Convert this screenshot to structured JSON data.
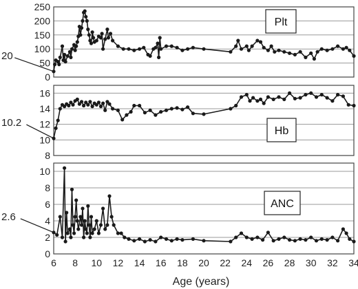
{
  "chart_data": {
    "type": "line",
    "x_axis": {
      "label": "Age (years)",
      "range": [
        6,
        34
      ],
      "ticks": [
        6,
        8,
        10,
        12,
        14,
        16,
        18,
        20,
        22,
        24,
        26,
        28,
        30,
        32,
        34
      ]
    },
    "grid": "horizontal",
    "panels": [
      {
        "id": "plt",
        "name": "Plt",
        "ylim": [
          0,
          250
        ],
        "yticks": [
          0,
          50,
          100,
          150,
          200,
          250
        ],
        "legend": "top-right",
        "annotation": {
          "label": "20",
          "x": 6,
          "y": 20
        },
        "points": [
          [
            6.0,
            20
          ],
          [
            6.1,
            45
          ],
          [
            6.2,
            60
          ],
          [
            6.4,
            55
          ],
          [
            6.5,
            45
          ],
          [
            6.6,
            70
          ],
          [
            6.8,
            110
          ],
          [
            6.9,
            60
          ],
          [
            7.0,
            80
          ],
          [
            7.1,
            55
          ],
          [
            7.3,
            75
          ],
          [
            7.5,
            90
          ],
          [
            7.6,
            70
          ],
          [
            7.7,
            100
          ],
          [
            7.9,
            115
          ],
          [
            8.0,
            95
          ],
          [
            8.1,
            110
          ],
          [
            8.2,
            125
          ],
          [
            8.3,
            145
          ],
          [
            8.4,
            180
          ],
          [
            8.5,
            150
          ],
          [
            8.6,
            175
          ],
          [
            8.7,
            200
          ],
          [
            8.8,
            230
          ],
          [
            8.9,
            235
          ],
          [
            9.0,
            215
          ],
          [
            9.1,
            200
          ],
          [
            9.2,
            170
          ],
          [
            9.3,
            150
          ],
          [
            9.4,
            130
          ],
          [
            9.5,
            120
          ],
          [
            9.6,
            160
          ],
          [
            9.7,
            140
          ],
          [
            9.8,
            125
          ],
          [
            10.0,
            130
          ],
          [
            10.2,
            145
          ],
          [
            10.4,
            140
          ],
          [
            10.5,
            155
          ],
          [
            10.6,
            100
          ],
          [
            10.8,
            135
          ],
          [
            11.0,
            170
          ],
          [
            11.1,
            140
          ],
          [
            11.3,
            155
          ],
          [
            11.5,
            130
          ],
          [
            12.0,
            110
          ],
          [
            12.5,
            100
          ],
          [
            13.0,
            100
          ],
          [
            13.5,
            95
          ],
          [
            14.0,
            100
          ],
          [
            14.4,
            105
          ],
          [
            14.8,
            80
          ],
          [
            15.0,
            75
          ],
          [
            15.3,
            100
          ],
          [
            15.5,
            105
          ],
          [
            15.7,
            120
          ],
          [
            15.8,
            70
          ],
          [
            15.9,
            140
          ],
          [
            16.0,
            100
          ],
          [
            16.5,
            110
          ],
          [
            17.0,
            110
          ],
          [
            17.5,
            105
          ],
          [
            18.0,
            95
          ],
          [
            18.5,
            100
          ],
          [
            19.0,
            105
          ],
          [
            20.0,
            100
          ],
          [
            22.5,
            90
          ],
          [
            23.0,
            110
          ],
          [
            23.2,
            130
          ],
          [
            23.5,
            100
          ],
          [
            24.0,
            110
          ],
          [
            24.2,
            95
          ],
          [
            24.5,
            110
          ],
          [
            25.0,
            130
          ],
          [
            25.3,
            125
          ],
          [
            25.6,
            105
          ],
          [
            26.0,
            95
          ],
          [
            26.3,
            110
          ],
          [
            26.6,
            90
          ],
          [
            27.0,
            95
          ],
          [
            27.5,
            90
          ],
          [
            28.0,
            85
          ],
          [
            28.5,
            80
          ],
          [
            29.0,
            90
          ],
          [
            29.5,
            70
          ],
          [
            30.0,
            85
          ],
          [
            30.3,
            65
          ],
          [
            30.6,
            90
          ],
          [
            31.0,
            100
          ],
          [
            31.5,
            95
          ],
          [
            32.0,
            100
          ],
          [
            32.5,
            110
          ],
          [
            33.0,
            100
          ],
          [
            33.3,
            105
          ],
          [
            33.6,
            95
          ],
          [
            34.0,
            75
          ]
        ]
      },
      {
        "id": "hb",
        "name": "Hb",
        "ylim": [
          8,
          17
        ],
        "yticks": [
          8,
          10,
          12,
          14,
          16
        ],
        "legend": "right",
        "annotation": {
          "label": "10.2",
          "x": 6,
          "y": 10.2
        },
        "points": [
          [
            6.0,
            10.2
          ],
          [
            6.2,
            11.5
          ],
          [
            6.4,
            12.5
          ],
          [
            6.6,
            14.0
          ],
          [
            6.8,
            14.5
          ],
          [
            7.0,
            14.3
          ],
          [
            7.2,
            14.6
          ],
          [
            7.4,
            14.4
          ],
          [
            7.6,
            14.8
          ],
          [
            7.8,
            14.5
          ],
          [
            8.0,
            15.0
          ],
          [
            8.2,
            15.2
          ],
          [
            8.4,
            14.6
          ],
          [
            8.6,
            14.9
          ],
          [
            8.8,
            14.4
          ],
          [
            9.0,
            14.8
          ],
          [
            9.2,
            14.5
          ],
          [
            9.4,
            14.9
          ],
          [
            9.6,
            14.3
          ],
          [
            9.8,
            14.7
          ],
          [
            10.0,
            14.5
          ],
          [
            10.2,
            14.8
          ],
          [
            10.4,
            14.3
          ],
          [
            10.6,
            14.7
          ],
          [
            10.8,
            13.8
          ],
          [
            11.0,
            14.9
          ],
          [
            11.2,
            14.6
          ],
          [
            11.5,
            14.0
          ],
          [
            12.0,
            13.8
          ],
          [
            12.4,
            12.6
          ],
          [
            12.8,
            13.2
          ],
          [
            13.2,
            13.6
          ],
          [
            13.5,
            14.4
          ],
          [
            14.0,
            14.4
          ],
          [
            14.5,
            13.5
          ],
          [
            15.0,
            13.8
          ],
          [
            15.5,
            13.2
          ],
          [
            16.0,
            13.6
          ],
          [
            16.5,
            13.8
          ],
          [
            17.0,
            14.0
          ],
          [
            17.5,
            14.1
          ],
          [
            18.0,
            13.9
          ],
          [
            18.5,
            14.2
          ],
          [
            19.0,
            13.4
          ],
          [
            20.0,
            13.3
          ],
          [
            22.5,
            14.0
          ],
          [
            23.0,
            14.4
          ],
          [
            23.5,
            15.5
          ],
          [
            24.0,
            15.8
          ],
          [
            24.3,
            15.0
          ],
          [
            24.6,
            15.4
          ],
          [
            25.0,
            15.0
          ],
          [
            25.3,
            15.2
          ],
          [
            25.6,
            14.7
          ],
          [
            26.0,
            15.5
          ],
          [
            26.5,
            15.2
          ],
          [
            27.0,
            15.5
          ],
          [
            27.5,
            15.2
          ],
          [
            28.0,
            16.0
          ],
          [
            28.5,
            15.3
          ],
          [
            29.0,
            15.4
          ],
          [
            29.5,
            15.8
          ],
          [
            30.0,
            16.0
          ],
          [
            30.5,
            15.5
          ],
          [
            31.0,
            15.8
          ],
          [
            31.5,
            15.4
          ],
          [
            32.0,
            15.0
          ],
          [
            32.5,
            15.8
          ],
          [
            33.0,
            15.6
          ],
          [
            33.5,
            14.5
          ],
          [
            34.0,
            14.4
          ]
        ]
      },
      {
        "id": "anc",
        "name": "ANC",
        "ylim": [
          0,
          11
        ],
        "yticks": [
          0,
          2,
          4,
          6,
          8,
          10
        ],
        "legend": "right",
        "annotation": {
          "label": "2.6",
          "x": 6,
          "y": 2.6
        },
        "points": [
          [
            6.0,
            2.6
          ],
          [
            6.3,
            2.3
          ],
          [
            6.6,
            4.5
          ],
          [
            6.8,
            2.0
          ],
          [
            7.0,
            10.4
          ],
          [
            7.1,
            1.5
          ],
          [
            7.2,
            5.0
          ],
          [
            7.3,
            2.5
          ],
          [
            7.5,
            3.0
          ],
          [
            7.6,
            2.0
          ],
          [
            7.7,
            7.8
          ],
          [
            7.8,
            3.5
          ],
          [
            7.9,
            2.5
          ],
          [
            8.0,
            4.5
          ],
          [
            8.1,
            6.5
          ],
          [
            8.2,
            4.0
          ],
          [
            8.3,
            3.0
          ],
          [
            8.5,
            4.5
          ],
          [
            8.6,
            3.5
          ],
          [
            8.7,
            5.5
          ],
          [
            8.8,
            2.0
          ],
          [
            8.9,
            4.0
          ],
          [
            9.0,
            3.0
          ],
          [
            9.1,
            2.5
          ],
          [
            9.2,
            5.8
          ],
          [
            9.3,
            3.5
          ],
          [
            9.4,
            2.0
          ],
          [
            9.5,
            4.5
          ],
          [
            9.6,
            2.5
          ],
          [
            9.8,
            3.0
          ],
          [
            10.0,
            4.0
          ],
          [
            10.2,
            2.5
          ],
          [
            10.4,
            3.5
          ],
          [
            10.6,
            5.5
          ],
          [
            10.8,
            3.0
          ],
          [
            11.0,
            3.5
          ],
          [
            11.2,
            7.0
          ],
          [
            11.4,
            4.5
          ],
          [
            11.6,
            3.5
          ],
          [
            12.0,
            2.5
          ],
          [
            12.3,
            2.5
          ],
          [
            12.6,
            2.0
          ],
          [
            13.0,
            1.8
          ],
          [
            13.5,
            1.6
          ],
          [
            14.0,
            1.8
          ],
          [
            14.5,
            1.5
          ],
          [
            15.0,
            1.7
          ],
          [
            15.5,
            1.5
          ],
          [
            16.0,
            2.0
          ],
          [
            16.5,
            1.8
          ],
          [
            17.0,
            1.6
          ],
          [
            17.5,
            1.8
          ],
          [
            18.0,
            1.7
          ],
          [
            19.0,
            1.8
          ],
          [
            20.0,
            1.6
          ],
          [
            22.5,
            1.5
          ],
          [
            23.0,
            2.0
          ],
          [
            23.5,
            2.5
          ],
          [
            24.0,
            2.0
          ],
          [
            24.5,
            1.8
          ],
          [
            25.0,
            2.0
          ],
          [
            25.5,
            1.7
          ],
          [
            26.0,
            2.6
          ],
          [
            26.5,
            1.6
          ],
          [
            27.0,
            1.8
          ],
          [
            27.5,
            2.0
          ],
          [
            28.0,
            1.7
          ],
          [
            28.5,
            1.6
          ],
          [
            29.0,
            1.8
          ],
          [
            29.5,
            1.7
          ],
          [
            30.0,
            2.0
          ],
          [
            30.5,
            1.6
          ],
          [
            31.0,
            1.8
          ],
          [
            31.5,
            1.7
          ],
          [
            32.0,
            2.0
          ],
          [
            32.5,
            1.6
          ],
          [
            33.0,
            3.0
          ],
          [
            33.3,
            2.5
          ],
          [
            33.6,
            1.8
          ],
          [
            34.0,
            1.5
          ]
        ]
      }
    ]
  }
}
